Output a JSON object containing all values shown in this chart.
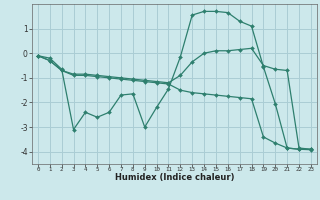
{
  "xlabel": "Humidex (Indice chaleur)",
  "x": [
    0,
    1,
    2,
    3,
    4,
    5,
    6,
    7,
    8,
    9,
    10,
    11,
    12,
    13,
    14,
    15,
    16,
    17,
    18,
    19,
    20,
    21,
    22,
    23
  ],
  "line1": [
    -0.1,
    -0.2,
    -0.65,
    -3.1,
    -2.4,
    -2.6,
    -2.4,
    -1.7,
    -1.65,
    -3.0,
    -2.2,
    -1.45,
    -0.15,
    1.55,
    1.7,
    1.7,
    1.65,
    1.3,
    1.1,
    -0.55,
    -2.05,
    -3.85,
    -3.9,
    -3.9
  ],
  "line2": [
    -0.1,
    -0.3,
    -0.7,
    -0.85,
    -0.85,
    -0.9,
    -0.95,
    -1.0,
    -1.05,
    -1.1,
    -1.15,
    -1.2,
    -0.9,
    -0.35,
    0.0,
    0.1,
    0.1,
    0.15,
    0.2,
    -0.5,
    -0.65,
    -0.7,
    -3.85,
    -3.9
  ],
  "line3": [
    -0.1,
    -0.3,
    -0.7,
    -0.9,
    -0.9,
    -0.95,
    -1.0,
    -1.05,
    -1.1,
    -1.15,
    -1.2,
    -1.25,
    -1.5,
    -1.6,
    -1.65,
    -1.7,
    -1.75,
    -1.8,
    -1.85,
    -3.4,
    -3.65,
    -3.85,
    -3.9,
    -3.92
  ],
  "color": "#2e7f6e",
  "bg_color": "#cce8eb",
  "grid_color": "#aacdd4",
  "ylim": [
    -4.5,
    2.0
  ],
  "xlim": [
    -0.5,
    23.5
  ],
  "yticks": [
    -4,
    -3,
    -2,
    -1,
    0,
    1
  ],
  "xticks": [
    0,
    1,
    2,
    3,
    4,
    5,
    6,
    7,
    8,
    9,
    10,
    11,
    12,
    13,
    14,
    15,
    16,
    17,
    18,
    19,
    20,
    21,
    22,
    23
  ]
}
